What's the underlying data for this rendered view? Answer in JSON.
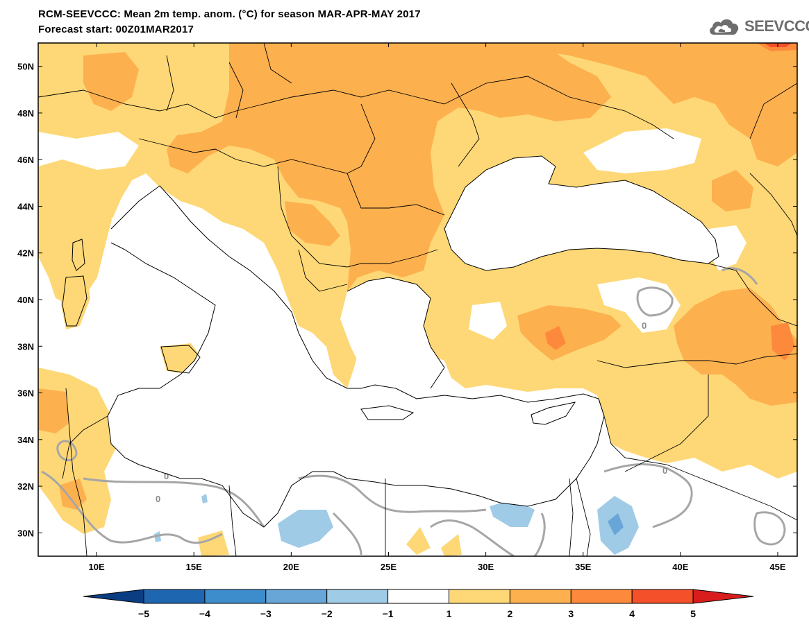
{
  "header": {
    "title_line1": "RCM-SEEVCCC: Mean 2m temp. anom. (°C) for season MAR-APR-MAY 2017",
    "title_line2": "Forecast start: 00Z01MAR2017",
    "logo_text": "SEEVCCC"
  },
  "map": {
    "lon_range": [
      7,
      46
    ],
    "lat_range": [
      29,
      51
    ],
    "lat_ticks": [
      "30N",
      "32N",
      "34N",
      "36N",
      "38N",
      "40N",
      "42N",
      "44N",
      "46N",
      "48N",
      "50N"
    ],
    "lon_ticks": [
      "10E",
      "15E",
      "20E",
      "25E",
      "30E",
      "35E",
      "40E",
      "45E"
    ],
    "contour_labels": [
      "0",
      "0",
      "0",
      "0"
    ]
  },
  "colorbar": {
    "labels": [
      "−5",
      "−4",
      "−3",
      "−2",
      "−1",
      "1",
      "2",
      "3",
      "4",
      "5"
    ],
    "colors": [
      "#0a3d82",
      "#1f66b0",
      "#3d8ccc",
      "#68a6d8",
      "#a0cbe6",
      "#ffffff",
      "#fed876",
      "#fdb04e",
      "#fd8a3c",
      "#f4512a",
      "#d91d1d"
    ]
  }
}
